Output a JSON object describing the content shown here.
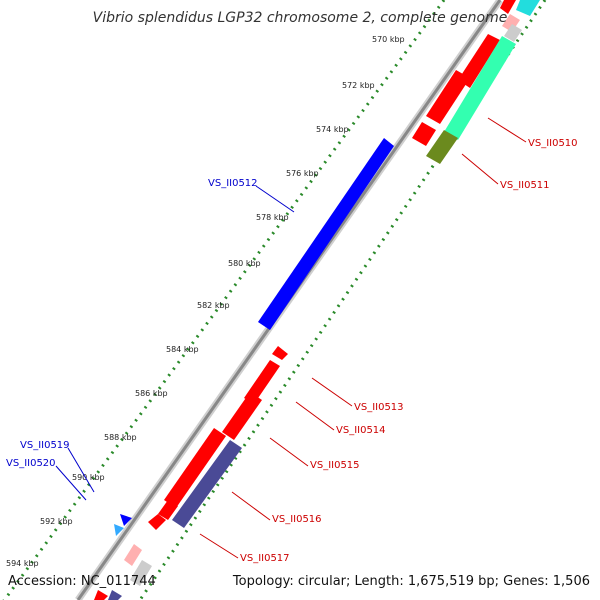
{
  "title": "Vibrio splendidus LGP32 chromosome 2, complete genome",
  "footer": {
    "accession": "Accession: NC_011744",
    "summary": "Topology: circular; Length: 1,675,519 bp; Genes: 1,506"
  },
  "ticks": [
    "570 kbp",
    "572 kbp",
    "574 kbp",
    "576 kbp",
    "578 kbp",
    "580 kbp",
    "582 kbp",
    "584 kbp",
    "586 kbp",
    "588 kbp",
    "590 kbp",
    "592 kbp",
    "594 kbp"
  ],
  "gene_labels": [
    "VS_II0510",
    "VS_II0511",
    "VS_II0512",
    "VS_II0513",
    "VS_II0514",
    "VS_II0515",
    "VS_II0516",
    "VS_II0517",
    "VS_II0519",
    "VS_II0520"
  ],
  "colors": {
    "forward_cds": "#ff0000",
    "blue_gene": "#0000ff",
    "navy_gene": "#4a4a96",
    "teal_gene": "#33ffb0",
    "olive_gene": "#6b8a1e",
    "cyan_gene": "#22dddd",
    "tick_dots": "#2a8a2a",
    "backbone": "#888888",
    "label_red": "#cc0000",
    "label_blue": "#0000cc"
  }
}
